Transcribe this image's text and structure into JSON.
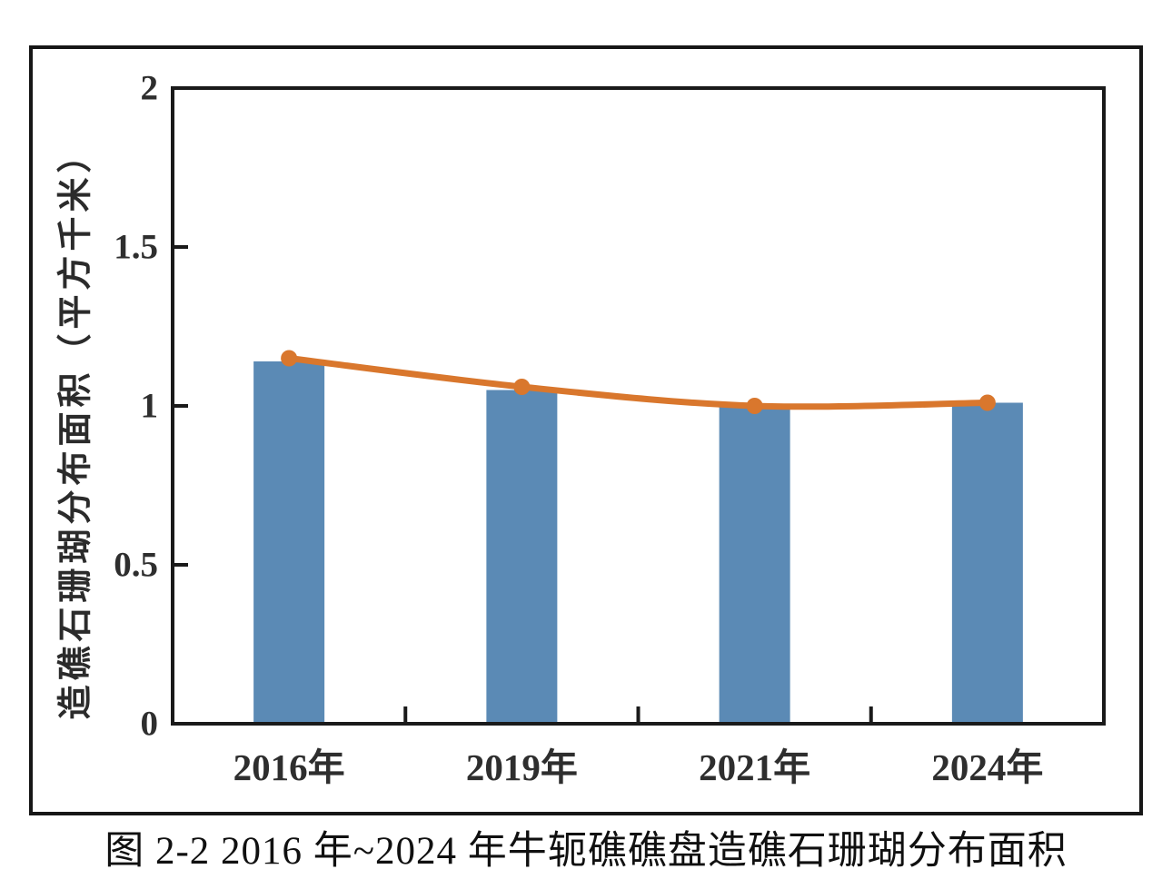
{
  "figure": {
    "caption": "图 2-2 2016 年~2024 年牛轭礁礁盘造礁石珊瑚分布面积"
  },
  "chart_data": {
    "type": "bar",
    "subtype": "bar-with-line-overlay",
    "categories": [
      "2016年",
      "2019年",
      "2021年",
      "2024年"
    ],
    "series": [
      {
        "name": "bar-series",
        "type": "bar",
        "values": [
          1.14,
          1.05,
          1.0,
          1.01
        ],
        "color": "#5B8AB5"
      },
      {
        "name": "line-series",
        "type": "line",
        "values": [
          1.15,
          1.06,
          1.0,
          1.01
        ],
        "color": "#D9772D",
        "marker": "circle"
      }
    ],
    "title": "",
    "xlabel": "",
    "ylabel": "造礁石珊瑚分布面积（平方千米）",
    "ylim": [
      0,
      2
    ],
    "yticks": [
      0,
      0.5,
      1,
      1.5,
      2
    ],
    "grid": false,
    "legend_position": "none",
    "axis_color": "#1a1a1a",
    "text_color": "#2e2e2e"
  }
}
